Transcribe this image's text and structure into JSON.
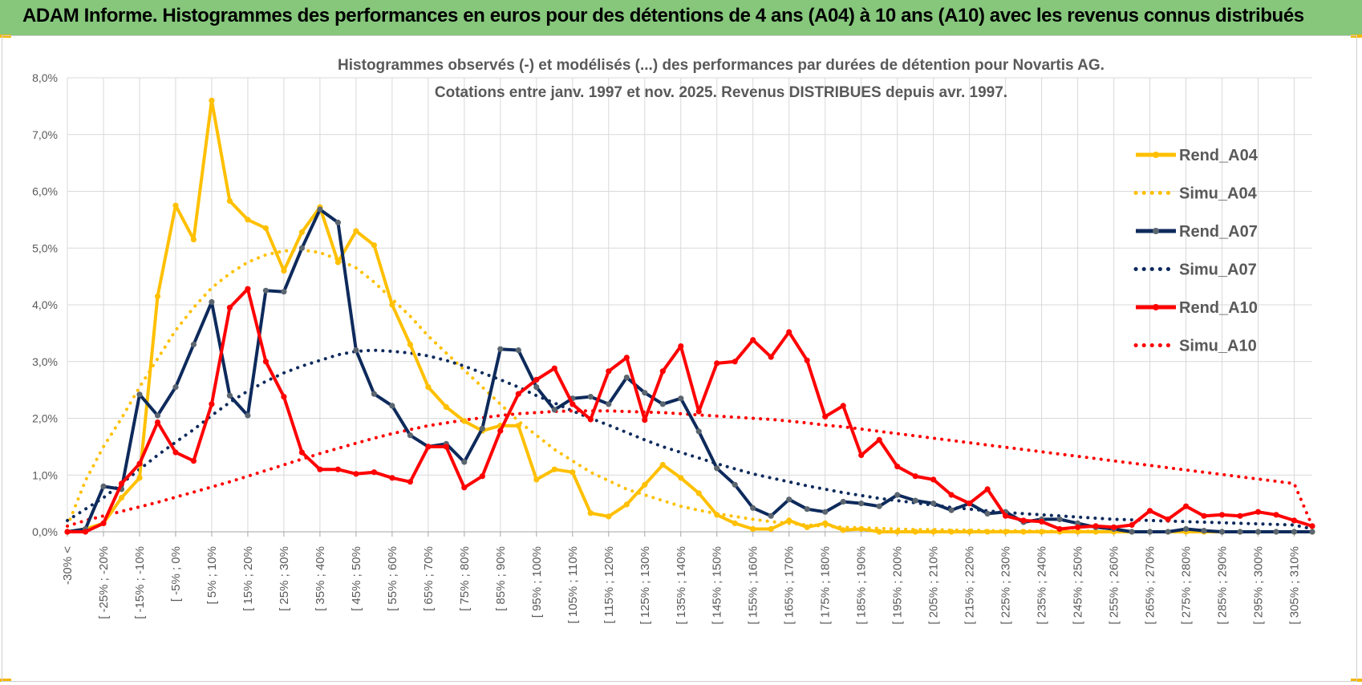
{
  "banner": {
    "title": "ADAM Informe. Histogrammes des performances en euros pour des détentions de 4 ans (A04) à 10 ans (A10) avec les revenus connus distribués"
  },
  "colors": {
    "banner_bg": "#86c77c",
    "a04": "#ffc000",
    "a07": "#0e2a5c",
    "a07_marker": "#5b6670",
    "a10": "#ff0000",
    "grid": "#d9d9d9",
    "axis_text": "#595959"
  },
  "chart_data": {
    "type": "line",
    "title": "Histogrammes observés (-) et modélisés (...) des performances par durées de détention pour Novartis AG.",
    "subtitle": "Cotations entre janv. 1997 et nov. 2025. Revenus DISTRIBUES depuis avr. 1997.",
    "xlabel": "",
    "ylabel": "",
    "ylim": [
      0,
      8
    ],
    "y_ticks": [
      "0,0%",
      "1,0%",
      "2,0%",
      "3,0%",
      "4,0%",
      "5,0%",
      "6,0%",
      "7,0%",
      "8,0%"
    ],
    "grid": true,
    "legend_position": "right",
    "x_labels": [
      "-30% <",
      "[ -25% ; -20%",
      "[ -15% ; -10%",
      "[ -5% ; 0%",
      "[ 5% ; 10%",
      "[ 15% ; 20%",
      "[ 25% ; 30%",
      "[ 35% ; 40%",
      "[ 45% ; 50%",
      "[ 55% ; 60%",
      "[ 65% ; 70%",
      "[ 75% ; 80%",
      "[ 85% ; 90%",
      "[ 95% ; 100%",
      "[ 105% ; 110%",
      "[ 115% ; 120%",
      "[ 125% ; 130%",
      "[ 135% ; 140%",
      "[ 145% ; 150%",
      "[ 155% ; 160%",
      "[ 165% ; 170%",
      "[ 175% ; 180%",
      "[ 185% ; 190%",
      "[ 195% ; 200%",
      "[ 205% ; 210%",
      "[ 215% ; 220%",
      "[ 225% ; 230%",
      "[ 235% ; 240%",
      "[ 245% ; 250%",
      "[ 255% ; 260%",
      "[ 265% ; 270%",
      "[ 275% ; 280%",
      "[ 285% ; 290%",
      "[ 295% ; 300%",
      "[ 305% ; 310%"
    ],
    "series": [
      {
        "name": "Rend_A04",
        "style": "solid",
        "color": "#ffc000",
        "values": [
          0.0,
          0.05,
          0.15,
          0.6,
          0.95,
          4.15,
          5.75,
          5.15,
          7.6,
          5.83,
          5.5,
          5.35,
          4.6,
          5.28,
          5.72,
          4.75,
          5.3,
          5.05,
          4.0,
          3.3,
          2.55,
          2.2,
          1.95,
          1.78,
          1.87,
          1.87,
          0.92,
          1.1,
          1.05,
          0.33,
          0.27,
          0.48,
          0.83,
          1.18,
          0.95,
          0.68,
          0.3,
          0.15,
          0.05,
          0.05,
          0.2,
          0.08,
          0.15,
          0.03,
          0.05,
          0.0,
          0.0,
          0.0,
          0.0,
          0.0,
          0.0,
          0.0,
          0.0,
          0.0,
          0.0,
          0.0,
          0.0,
          0.0,
          0.0,
          0.0,
          0.0,
          0.0,
          0.0,
          0.0,
          0.0,
          0.0,
          0.0,
          0.0,
          0.0,
          0.0
        ]
      },
      {
        "name": "Simu_A04",
        "style": "dotted",
        "color": "#ffc000",
        "values": [
          0.1,
          0.9,
          1.5,
          2.0,
          2.55,
          3.05,
          3.55,
          3.95,
          4.3,
          4.55,
          4.75,
          4.88,
          4.95,
          4.97,
          4.92,
          4.8,
          4.65,
          4.4,
          4.1,
          3.8,
          3.45,
          3.15,
          2.85,
          2.55,
          2.25,
          1.95,
          1.7,
          1.45,
          1.25,
          1.05,
          0.9,
          0.75,
          0.65,
          0.55,
          0.45,
          0.38,
          0.32,
          0.27,
          0.22,
          0.18,
          0.15,
          0.12,
          0.1,
          0.08,
          0.07,
          0.06,
          0.05,
          0.04,
          0.04,
          0.03,
          0.03,
          0.02,
          0.02,
          0.02,
          0.01,
          0.01,
          0.01,
          0.01,
          0.0,
          0.0,
          0.0,
          0.0,
          0.0,
          0.0,
          0.0,
          0.0,
          0.0,
          0.0,
          0.0,
          0.0
        ]
      },
      {
        "name": "Rend_A07",
        "style": "solid",
        "color": "#0e2a5c",
        "values": [
          0.0,
          0.05,
          0.8,
          0.75,
          2.42,
          2.05,
          2.55,
          3.3,
          4.05,
          2.4,
          2.05,
          4.25,
          4.23,
          5.0,
          5.68,
          5.45,
          3.2,
          2.43,
          2.22,
          1.7,
          1.5,
          1.55,
          1.23,
          1.82,
          3.22,
          3.2,
          2.55,
          2.15,
          2.35,
          2.38,
          2.25,
          2.72,
          2.45,
          2.25,
          2.35,
          1.77,
          1.12,
          0.83,
          0.42,
          0.28,
          0.57,
          0.4,
          0.35,
          0.53,
          0.5,
          0.45,
          0.65,
          0.55,
          0.5,
          0.38,
          0.5,
          0.32,
          0.35,
          0.17,
          0.22,
          0.22,
          0.15,
          0.08,
          0.05,
          0.0,
          0.0,
          0.0,
          0.05,
          0.02,
          0.0,
          0.0,
          0.0,
          0.0,
          0.0,
          0.0
        ]
      },
      {
        "name": "Simu_A07",
        "style": "dotted",
        "color": "#0e2a5c",
        "values": [
          0.2,
          0.4,
          0.6,
          0.85,
          1.1,
          1.35,
          1.58,
          1.8,
          2.05,
          2.28,
          2.48,
          2.65,
          2.8,
          2.92,
          3.02,
          3.12,
          3.18,
          3.2,
          3.18,
          3.15,
          3.1,
          3.02,
          2.92,
          2.8,
          2.68,
          2.55,
          2.4,
          2.27,
          2.13,
          2.0,
          1.88,
          1.75,
          1.62,
          1.5,
          1.4,
          1.3,
          1.2,
          1.11,
          1.02,
          0.95,
          0.88,
          0.81,
          0.75,
          0.69,
          0.64,
          0.59,
          0.55,
          0.51,
          0.47,
          0.43,
          0.4,
          0.37,
          0.34,
          0.32,
          0.3,
          0.28,
          0.26,
          0.24,
          0.22,
          0.21,
          0.2,
          0.19,
          0.18,
          0.17,
          0.16,
          0.15,
          0.14,
          0.13,
          0.12,
          0.05
        ]
      },
      {
        "name": "Rend_A10",
        "style": "solid",
        "color": "#ff0000",
        "values": [
          0.0,
          0.0,
          0.15,
          0.85,
          1.2,
          1.93,
          1.4,
          1.25,
          2.25,
          3.95,
          4.28,
          3.0,
          2.38,
          1.4,
          1.1,
          1.1,
          1.02,
          1.05,
          0.95,
          0.88,
          1.5,
          1.5,
          0.78,
          0.98,
          1.78,
          2.43,
          2.68,
          2.88,
          2.25,
          1.98,
          2.83,
          3.07,
          1.97,
          2.83,
          3.27,
          2.12,
          2.97,
          3.0,
          3.38,
          3.08,
          3.52,
          3.02,
          2.03,
          2.22,
          1.35,
          1.62,
          1.15,
          0.98,
          0.92,
          0.65,
          0.5,
          0.75,
          0.28,
          0.2,
          0.18,
          0.05,
          0.08,
          0.1,
          0.08,
          0.12,
          0.37,
          0.22,
          0.45,
          0.28,
          0.3,
          0.28,
          0.35,
          0.3,
          0.2,
          0.1
        ]
      },
      {
        "name": "Simu_A10",
        "style": "dotted",
        "color": "#ff0000",
        "values": [
          0.1,
          0.2,
          0.28,
          0.36,
          0.44,
          0.52,
          0.61,
          0.7,
          0.79,
          0.88,
          0.98,
          1.08,
          1.18,
          1.28,
          1.38,
          1.47,
          1.56,
          1.65,
          1.73,
          1.8,
          1.87,
          1.92,
          1.97,
          2.01,
          2.05,
          2.08,
          2.1,
          2.12,
          2.13,
          2.13,
          2.13,
          2.12,
          2.11,
          2.1,
          2.08,
          2.06,
          2.04,
          2.02,
          2.0,
          1.98,
          1.95,
          1.92,
          1.88,
          1.85,
          1.81,
          1.77,
          1.73,
          1.69,
          1.65,
          1.61,
          1.57,
          1.53,
          1.49,
          1.45,
          1.41,
          1.37,
          1.33,
          1.29,
          1.25,
          1.21,
          1.17,
          1.13,
          1.09,
          1.05,
          1.01,
          0.97,
          0.93,
          0.89,
          0.85,
          0.1
        ]
      }
    ]
  }
}
